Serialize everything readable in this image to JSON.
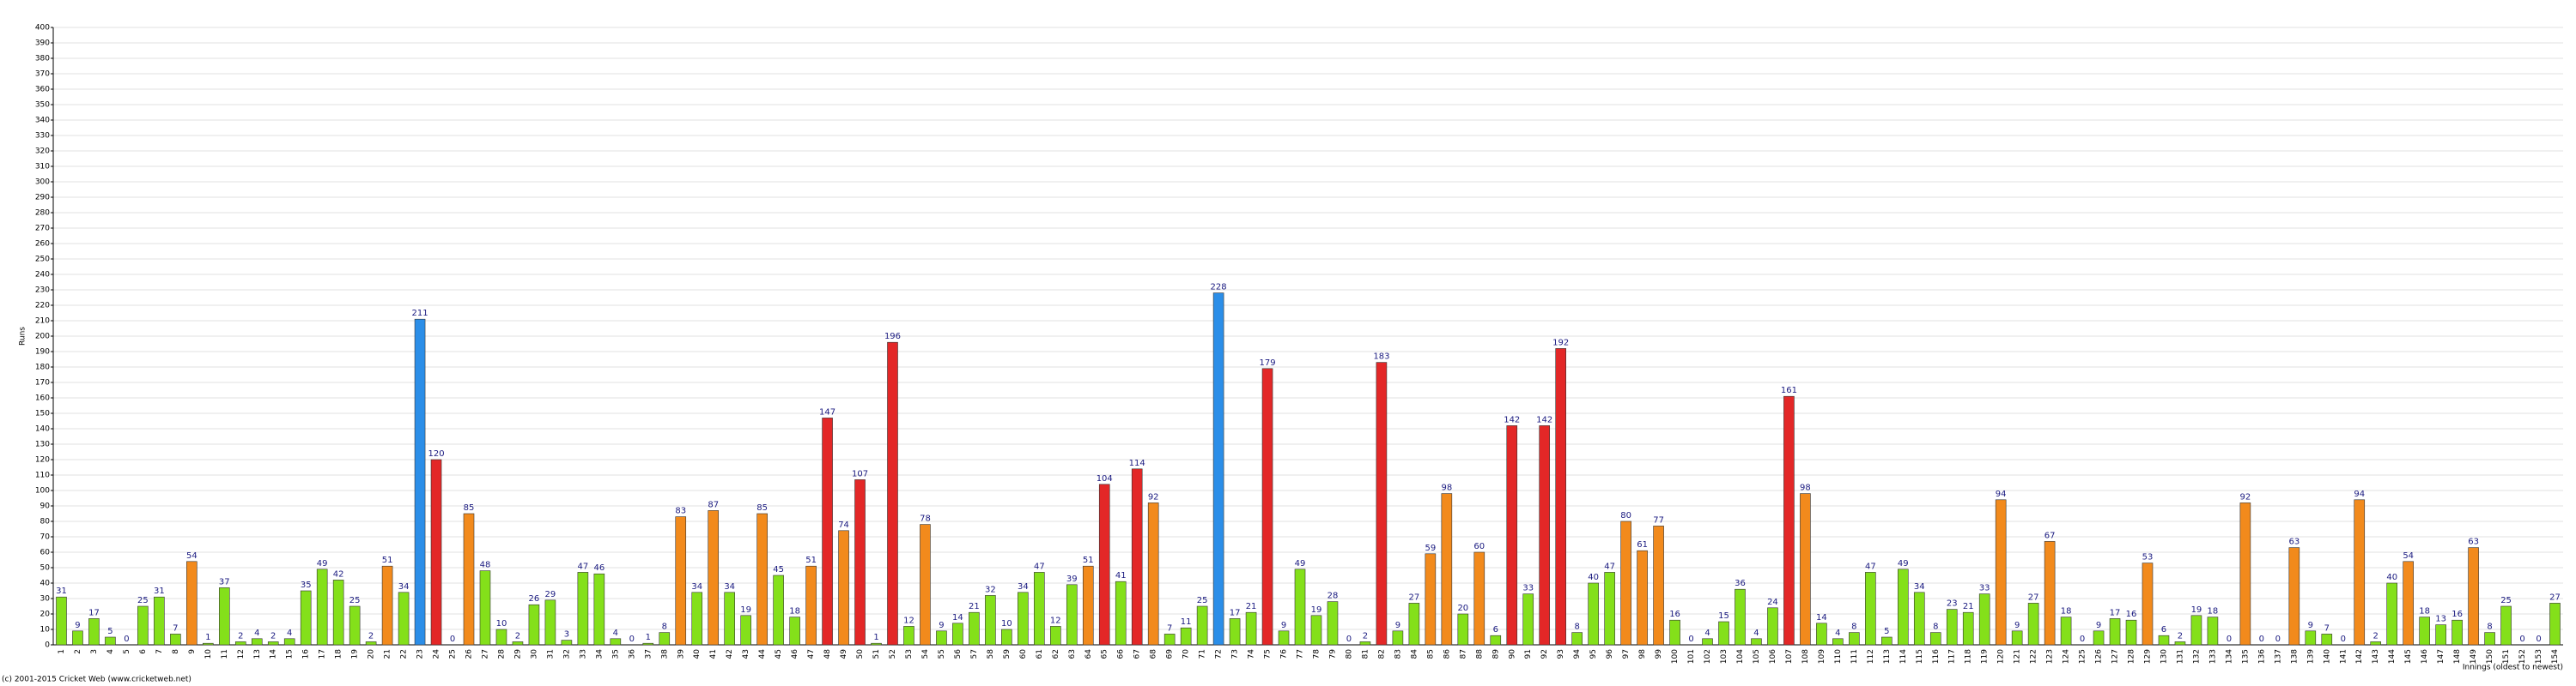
{
  "chart_data": {
    "type": "bar",
    "y_label": "Runs",
    "x_label": "Innings (oldest to newest)",
    "footer": "(c) 2001-2015 Cricket Web (www.cricketweb.net)",
    "categories": [
      1,
      2,
      3,
      4,
      5,
      6,
      7,
      8,
      9,
      10,
      11,
      12,
      13,
      14,
      15,
      16,
      17,
      18,
      19,
      20,
      21,
      22,
      23,
      24,
      25,
      26,
      27,
      28,
      29,
      30,
      31,
      32,
      33,
      34,
      35,
      36,
      37,
      38,
      39,
      40,
      41,
      42,
      43,
      44,
      45,
      46,
      47,
      48,
      49,
      50,
      51,
      52,
      53,
      54,
      55,
      56,
      57,
      58,
      59,
      60,
      61,
      62,
      63,
      64,
      65,
      66,
      67,
      68,
      69,
      70,
      71,
      72,
      73,
      74,
      75,
      76,
      77,
      78,
      79,
      80,
      81,
      82,
      83,
      84,
      85,
      86,
      87,
      88,
      89,
      90,
      91,
      92,
      93,
      94,
      95,
      96,
      97,
      98,
      99,
      100,
      101,
      102,
      103,
      104,
      105,
      106,
      107,
      108,
      109,
      110,
      111,
      112,
      113,
      114,
      115,
      116,
      117,
      118,
      119,
      120,
      121,
      122,
      123,
      124,
      125,
      126,
      127,
      128,
      129,
      130,
      131,
      132,
      133,
      134,
      135,
      136,
      137,
      138,
      139,
      140,
      141,
      142,
      143,
      144,
      145,
      146,
      147,
      148,
      149,
      150,
      151,
      152,
      153,
      154
    ],
    "values": [
      31,
      9,
      17,
      5,
      0,
      25,
      31,
      7,
      54,
      1,
      37,
      2,
      4,
      2,
      4,
      35,
      49,
      42,
      25,
      2,
      51,
      34,
      211,
      120,
      0,
      85,
      48,
      10,
      2,
      26,
      29,
      3,
      47,
      46,
      4,
      0,
      1,
      8,
      83,
      34,
      87,
      34,
      19,
      85,
      45,
      18,
      51,
      147,
      74,
      107,
      1,
      196,
      12,
      78,
      9,
      14,
      21,
      32,
      10,
      34,
      47,
      12,
      39,
      51,
      104,
      41,
      114,
      92,
      7,
      11,
      25,
      228,
      17,
      21,
      179,
      9,
      49,
      19,
      28,
      0,
      2,
      183,
      9,
      27,
      59,
      98,
      20,
      60,
      6,
      142,
      33,
      142,
      192,
      8,
      40,
      47,
      80,
      61,
      77,
      16,
      0,
      4,
      15,
      36,
      4,
      24,
      161,
      98,
      14,
      4,
      8,
      47,
      5,
      49,
      34,
      8,
      23,
      21,
      33,
      94,
      9,
      27,
      67,
      18,
      0,
      9,
      17,
      16,
      53,
      6,
      2,
      19,
      18,
      0,
      92,
      0,
      0,
      63,
      9,
      7,
      0,
      94,
      2,
      40,
      54,
      18,
      13,
      16,
      63,
      8,
      25,
      0,
      0,
      27
    ],
    "colors": [
      "#84e01a",
      "#84e01a",
      "#84e01a",
      "#84e01a",
      "#84e01a",
      "#84e01a",
      "#84e01a",
      "#84e01a",
      "#f28a1c",
      "#84e01a",
      "#84e01a",
      "#84e01a",
      "#84e01a",
      "#84e01a",
      "#84e01a",
      "#84e01a",
      "#84e01a",
      "#84e01a",
      "#84e01a",
      "#84e01a",
      "#f28a1c",
      "#84e01a",
      "#2b8ee8",
      "#e32727",
      "#84e01a",
      "#f28a1c",
      "#84e01a",
      "#84e01a",
      "#84e01a",
      "#84e01a",
      "#84e01a",
      "#84e01a",
      "#84e01a",
      "#84e01a",
      "#84e01a",
      "#84e01a",
      "#84e01a",
      "#84e01a",
      "#f28a1c",
      "#84e01a",
      "#f28a1c",
      "#84e01a",
      "#84e01a",
      "#f28a1c",
      "#84e01a",
      "#84e01a",
      "#f28a1c",
      "#e32727",
      "#f28a1c",
      "#e32727",
      "#84e01a",
      "#e32727",
      "#84e01a",
      "#f28a1c",
      "#84e01a",
      "#84e01a",
      "#84e01a",
      "#84e01a",
      "#84e01a",
      "#84e01a",
      "#84e01a",
      "#84e01a",
      "#84e01a",
      "#f28a1c",
      "#e32727",
      "#84e01a",
      "#e32727",
      "#f28a1c",
      "#84e01a",
      "#84e01a",
      "#84e01a",
      "#2b8ee8",
      "#84e01a",
      "#84e01a",
      "#e32727",
      "#84e01a",
      "#84e01a",
      "#84e01a",
      "#84e01a",
      "#84e01a",
      "#84e01a",
      "#e32727",
      "#84e01a",
      "#84e01a",
      "#f28a1c",
      "#f28a1c",
      "#84e01a",
      "#f28a1c",
      "#84e01a",
      "#e32727",
      "#84e01a",
      "#e32727",
      "#e32727",
      "#84e01a",
      "#84e01a",
      "#84e01a",
      "#f28a1c",
      "#f28a1c",
      "#f28a1c",
      "#84e01a",
      "#84e01a",
      "#84e01a",
      "#84e01a",
      "#84e01a",
      "#84e01a",
      "#84e01a",
      "#e32727",
      "#f28a1c",
      "#84e01a",
      "#84e01a",
      "#84e01a",
      "#84e01a",
      "#84e01a",
      "#84e01a",
      "#84e01a",
      "#84e01a",
      "#84e01a",
      "#84e01a",
      "#84e01a",
      "#f28a1c",
      "#84e01a",
      "#84e01a",
      "#f28a1c",
      "#84e01a",
      "#84e01a",
      "#84e01a",
      "#84e01a",
      "#84e01a",
      "#f28a1c",
      "#84e01a",
      "#84e01a",
      "#84e01a",
      "#84e01a",
      "#84e01a",
      "#f28a1c",
      "#84e01a",
      "#84e01a",
      "#f28a1c",
      "#84e01a",
      "#84e01a",
      "#84e01a",
      "#f28a1c",
      "#84e01a",
      "#84e01a",
      "#f28a1c",
      "#84e01a",
      "#84e01a",
      "#84e01a",
      "#f28a1c",
      "#84e01a",
      "#84e01a",
      "#84e01a",
      "#84e01a",
      "#84e01a"
    ],
    "ylim": [
      0,
      400
    ],
    "yticks": [
      0,
      10,
      20,
      30,
      40,
      50,
      60,
      70,
      80,
      90,
      100,
      110,
      120,
      130,
      140,
      150,
      160,
      170,
      180,
      190,
      200,
      210,
      220,
      230,
      240,
      250,
      260,
      270,
      280,
      290,
      300,
      310,
      320,
      330,
      340,
      350,
      360,
      370,
      380,
      390,
      400
    ],
    "grid": true
  }
}
